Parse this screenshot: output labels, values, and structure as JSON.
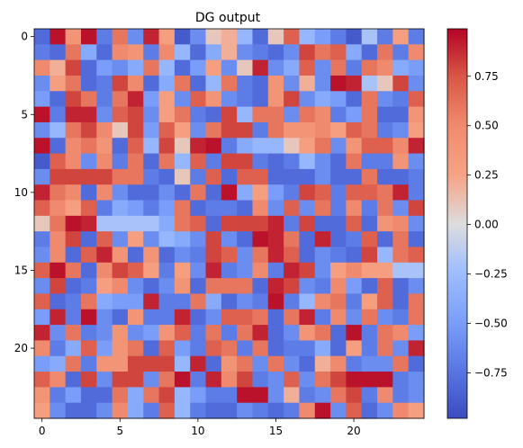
{
  "chart_data": {
    "type": "heatmap",
    "title": "DG output",
    "xlabel": "",
    "ylabel": "",
    "colormap": "coolwarm",
    "vmin": -0.98,
    "vmax": 0.99,
    "x_ticks": [
      0,
      5,
      10,
      15,
      20
    ],
    "x_tick_labels": [
      "0",
      "5",
      "10",
      "15",
      "20"
    ],
    "y_ticks": [
      0,
      5,
      10,
      15,
      20
    ],
    "y_tick_labels": [
      "0",
      "5",
      "10",
      "15",
      "20"
    ],
    "colorbar_ticks": [
      -0.75,
      -0.5,
      -0.25,
      0.0,
      0.25,
      0.5,
      0.75
    ],
    "colorbar_tick_labels": [
      "−0.75",
      "−0.50",
      "−0.25",
      "0.00",
      "0.25",
      "0.50",
      "0.75"
    ],
    "values": [
      [
        -0.8,
        0.95,
        0.4,
        0.95,
        -0.7,
        0.6,
        -0.6,
        0.9,
        0.3,
        -0.9,
        -0.6,
        0.1,
        0.2,
        -0.3,
        -0.8,
        0.1,
        0.7,
        -0.3,
        -0.5,
        -0.7,
        -0.9,
        -0.2,
        -0.7,
        0.3,
        -0.7
      ],
      [
        -0.7,
        -0.8,
        0.6,
        -0.4,
        -0.8,
        0.5,
        0.4,
        -0.7,
        0.5,
        -0.3,
        -0.8,
        -0.4,
        0.2,
        -0.6,
        -0.7,
        -0.8,
        -0.6,
        0.8,
        0.6,
        0.7,
        -0.4,
        -0.8,
        0.6,
        -0.7,
        0.5
      ],
      [
        0.5,
        0.2,
        0.8,
        -0.8,
        -0.5,
        -0.6,
        -0.4,
        0.6,
        -0.3,
        -0.8,
        -0.5,
        0.3,
        -0.6,
        0.1,
        0.9,
        -0.6,
        -0.4,
        0.7,
        -0.6,
        0.6,
        -0.7,
        0.6,
        0.5,
        -0.4,
        -0.5
      ],
      [
        -0.6,
        0.3,
        0.6,
        -0.8,
        -0.7,
        0.8,
        0.5,
        -0.8,
        -0.4,
        0.6,
        -0.8,
        -0.3,
        0.6,
        -0.7,
        -0.8,
        0.4,
        -0.6,
        0.2,
        -0.6,
        0.95,
        0.9,
        -0.2,
        0.1,
        0.8,
        -0.6
      ],
      [
        -0.5,
        -0.8,
        0.8,
        0.6,
        -0.7,
        0.6,
        0.9,
        -0.5,
        0.3,
        -0.6,
        0.7,
        0.4,
        -0.6,
        -0.7,
        -0.8,
        0.4,
        0.8,
        -0.6,
        -0.4,
        -0.5,
        -0.8,
        0.6,
        -0.6,
        -0.7,
        0.7
      ],
      [
        0.95,
        -0.7,
        0.9,
        0.9,
        -0.6,
        0.7,
        0.8,
        -0.6,
        0.3,
        0.6,
        -0.7,
        -0.8,
        0.8,
        -0.3,
        0.6,
        0.6,
        -0.6,
        0.6,
        0.5,
        -0.7,
        -0.5,
        0.6,
        -0.8,
        -0.8,
        0.4
      ],
      [
        -0.6,
        -0.3,
        0.6,
        0.8,
        0.5,
        0.1,
        0.8,
        -0.5,
        0.7,
        0.3,
        -0.6,
        0.6,
        0.8,
        0.8,
        -0.7,
        0.6,
        0.4,
        0.4,
        0.5,
        0.3,
        0.7,
        0.6,
        -0.7,
        -0.6,
        0.3
      ],
      [
        0.95,
        -0.8,
        0.5,
        0.6,
        0.4,
        -0.8,
        0.7,
        -0.3,
        0.8,
        0.1,
        0.9,
        0.95,
        -0.7,
        -0.4,
        -0.3,
        -0.3,
        0.1,
        0.3,
        0.6,
        -0.6,
        0.4,
        0.7,
        0.7,
        0.5,
        0.9
      ],
      [
        -0.9,
        0.7,
        0.5,
        -0.6,
        0.5,
        -0.7,
        0.6,
        -0.8,
        0.6,
        -0.3,
        0.7,
        -0.7,
        0.8,
        0.8,
        -0.7,
        -0.8,
        -0.7,
        -0.3,
        -0.6,
        -0.8,
        0.6,
        -0.7,
        -0.7,
        0.4,
        -0.6
      ],
      [
        -0.6,
        0.8,
        0.8,
        0.8,
        0.8,
        0.6,
        0.6,
        -0.7,
        -0.8,
        0.1,
        -0.7,
        0.7,
        -0.8,
        0.7,
        0.7,
        -0.8,
        -0.8,
        -0.8,
        -0.6,
        -0.8,
        -0.8,
        0.6,
        -0.8,
        -0.8,
        -0.7
      ],
      [
        0.9,
        0.6,
        0.5,
        -0.8,
        0.5,
        -0.6,
        -0.8,
        -0.8,
        -0.6,
        -0.8,
        0.6,
        -0.8,
        0.95,
        -0.4,
        0.3,
        -0.5,
        -0.7,
        0.8,
        0.7,
        -0.7,
        0.7,
        0.7,
        0.6,
        0.9,
        -0.7
      ],
      [
        0.7,
        0.5,
        0.3,
        0.7,
        -0.7,
        -0.4,
        -0.5,
        -0.7,
        -0.5,
        0.6,
        -0.8,
        -0.7,
        -0.7,
        -0.8,
        0.5,
        -0.6,
        0.7,
        -0.6,
        0.6,
        -0.7,
        0.5,
        -0.7,
        0.6,
        -0.6,
        0.8
      ],
      [
        0.1,
        0.6,
        0.95,
        0.9,
        -0.2,
        -0.2,
        -0.2,
        -0.2,
        -0.4,
        0.6,
        0.7,
        -0.8,
        0.8,
        0.8,
        0.8,
        0.9,
        -0.7,
        0.8,
        -0.8,
        -0.8,
        0.7,
        -0.8,
        0.4,
        0.5,
        -0.6
      ],
      [
        -0.7,
        0.5,
        0.8,
        -0.8,
        0.7,
        -0.6,
        0.3,
        -0.6,
        -0.3,
        -0.4,
        -0.6,
        0.8,
        -0.6,
        -0.8,
        0.95,
        0.9,
        0.6,
        -0.8,
        0.9,
        -0.8,
        -0.7,
        0.7,
        -0.8,
        0.6,
        -0.8
      ],
      [
        -0.6,
        0.5,
        -0.8,
        0.7,
        0.9,
        0.4,
        -0.8,
        0.4,
        -0.8,
        -0.6,
        -0.7,
        0.8,
        0.7,
        -0.6,
        0.6,
        0.9,
        0.7,
        -0.8,
        -0.6,
        -0.7,
        -0.8,
        0.8,
        -0.3,
        0.6,
        0.7
      ],
      [
        0.7,
        0.95,
        0.6,
        -0.8,
        0.5,
        0.8,
        0.7,
        0.3,
        -0.7,
        0.3,
        -0.6,
        0.9,
        -0.7,
        -0.6,
        0.5,
        -0.7,
        0.9,
        0.8,
        -0.6,
        0.3,
        0.5,
        0.3,
        0.3,
        -0.2,
        -0.2
      ],
      [
        -0.6,
        0.8,
        -0.8,
        -0.7,
        0.3,
        0.5,
        -0.6,
        -0.8,
        -0.6,
        0.4,
        -0.8,
        0.6,
        0.6,
        0.6,
        -0.8,
        0.9,
        0.8,
        -0.6,
        -0.7,
        0.5,
        -0.5,
        -0.8,
        0.7,
        -0.8,
        -0.6
      ],
      [
        0.7,
        -0.8,
        -0.7,
        0.6,
        -0.4,
        -0.5,
        -0.5,
        0.9,
        -0.7,
        -0.7,
        0.6,
        -0.4,
        -0.8,
        -0.6,
        -0.7,
        0.95,
        -0.7,
        -0.3,
        0.5,
        0.6,
        -0.7,
        0.3,
        0.7,
        -0.8,
        0.6
      ],
      [
        -0.5,
        0.9,
        -0.7,
        0.95,
        -0.6,
        -0.8,
        0.4,
        -0.7,
        -0.7,
        0.9,
        -0.8,
        -0.6,
        0.7,
        0.7,
        0.6,
        -0.8,
        0.6,
        0.9,
        -0.7,
        0.5,
        -0.6,
        0.6,
        -0.6,
        -0.7,
        0.6
      ],
      [
        0.9,
        -0.6,
        0.6,
        -0.7,
        -0.6,
        0.4,
        -0.6,
        -0.5,
        0.4,
        0.7,
        -0.7,
        0.6,
        -0.7,
        0.6,
        0.9,
        -0.8,
        -0.6,
        0.4,
        0.6,
        -0.8,
        0.95,
        -0.7,
        0.6,
        0.5,
        -0.5
      ],
      [
        0.5,
        -0.7,
        -0.4,
        0.7,
        -0.5,
        0.4,
        0.6,
        -0.8,
        0.7,
        -0.5,
        -0.7,
        0.7,
        0.6,
        -0.7,
        0.6,
        -0.8,
        -0.7,
        -0.7,
        -0.4,
        -0.8,
        0.3,
        -0.7,
        0.6,
        -0.6,
        0.9
      ],
      [
        -0.5,
        -0.4,
        0.6,
        -0.7,
        0.4,
        0.4,
        0.8,
        0.8,
        0.8,
        -0.3,
        0.9,
        -0.8,
        0.4,
        0.6,
        -0.6,
        0.6,
        -0.6,
        -0.8,
        0.2,
        0.5,
        -0.7,
        -0.6,
        -0.6,
        0.6,
        -0.8
      ],
      [
        0.7,
        0.5,
        -0.8,
        0.8,
        -0.6,
        0.8,
        0.8,
        -0.6,
        0.6,
        0.95,
        -0.7,
        0.9,
        0.5,
        0.8,
        -0.7,
        -0.6,
        0.7,
        -0.6,
        0.6,
        0.8,
        0.95,
        0.95,
        0.95,
        -0.7,
        -0.6
      ],
      [
        0.4,
        -0.7,
        -0.5,
        -0.8,
        -0.8,
        0.6,
        -0.4,
        0.6,
        0.8,
        -0.3,
        -0.5,
        -0.7,
        -0.7,
        0.95,
        0.95,
        -0.6,
        0.2,
        -0.7,
        -0.6,
        0.6,
        0.8,
        -0.7,
        0.5,
        -0.7,
        -0.6
      ],
      [
        0.3,
        -0.6,
        -0.8,
        -0.8,
        -0.6,
        0.5,
        -0.4,
        -0.7,
        0.7,
        -0.3,
        -0.7,
        -0.8,
        -0.8,
        -0.6,
        -0.7,
        -0.8,
        -0.7,
        0.5,
        0.95,
        -0.6,
        0.7,
        -0.8,
        -0.6,
        0.5,
        0.3
      ]
    ]
  }
}
